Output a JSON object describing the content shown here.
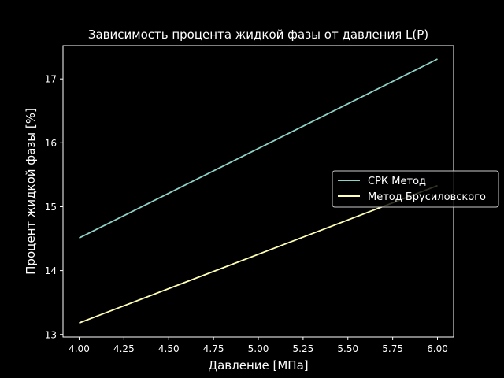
{
  "chart_data": {
    "type": "line",
    "title": "Зависимость процента жидкой фазы от давления L(P)",
    "xlabel": "Давление [МПа]",
    "ylabel": "Процент жидкой фазы [%]",
    "xlim": [
      3.91,
      6.09
    ],
    "ylim": [
      12.96,
      17.52
    ],
    "xticks": [
      4.0,
      4.25,
      4.5,
      4.75,
      5.0,
      5.25,
      5.5,
      5.75,
      6.0
    ],
    "xtick_labels": [
      "4.00",
      "4.25",
      "4.50",
      "4.75",
      "5.00",
      "5.25",
      "5.50",
      "5.75",
      "6.00"
    ],
    "yticks": [
      13,
      14,
      15,
      16,
      17
    ],
    "ytick_labels": [
      "13",
      "14",
      "15",
      "16",
      "17"
    ],
    "grid": false,
    "legend_position": "center-right",
    "background": "#000000",
    "foreground": "#ffffff",
    "series": [
      {
        "name": "СРК Метод",
        "color": "#8dd3c7",
        "x": [
          4.0,
          6.0
        ],
        "y": [
          14.51,
          17.31
        ]
      },
      {
        "name": "Метод Брусиловского",
        "color": "#feffb3",
        "x": [
          4.0,
          6.0
        ],
        "y": [
          13.18,
          15.33
        ]
      }
    ]
  }
}
